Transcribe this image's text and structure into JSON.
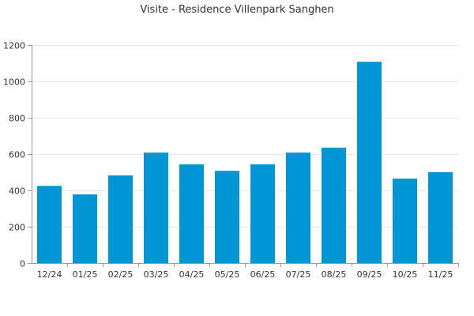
{
  "chart_data": {
    "type": "bar",
    "title": "Visite - Residence Villenpark Sanghen",
    "xlabel": "",
    "ylabel": "",
    "categories": [
      "12/24",
      "01/25",
      "02/25",
      "03/25",
      "04/25",
      "05/25",
      "06/25",
      "07/25",
      "08/25",
      "09/25",
      "10/25",
      "11/25"
    ],
    "series": [
      {
        "values": [
          425,
          378,
          482,
          608,
          543,
          508,
          543,
          608,
          635,
          1108,
          465,
          500
        ]
      }
    ],
    "ylim": [
      0,
      1200
    ],
    "yticks": [
      0,
      200,
      400,
      600,
      800,
      1000,
      1200
    ],
    "grid": true,
    "legend": "none",
    "colors": {
      "bar": "#0096d6"
    }
  }
}
